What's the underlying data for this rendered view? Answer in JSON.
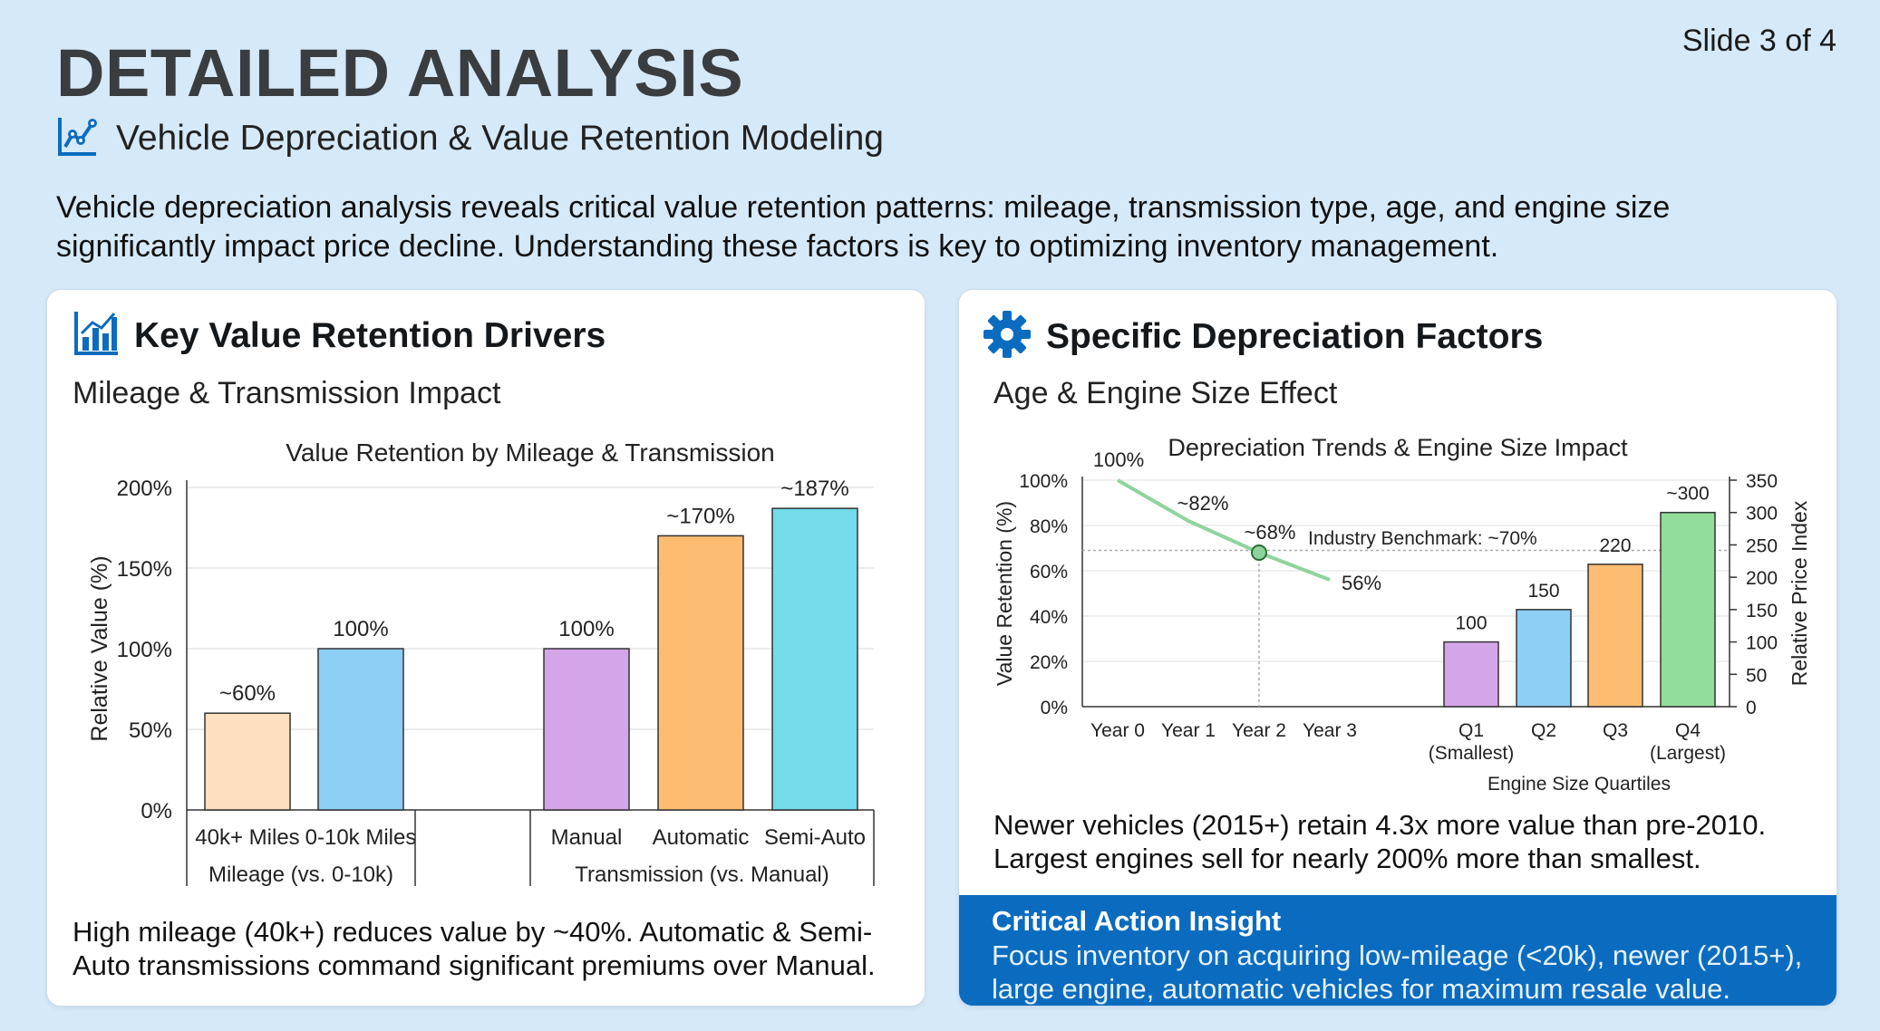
{
  "slide_number": "Slide 3 of 4",
  "title": "DETAILED ANALYSIS",
  "subtitle": "Vehicle Depreciation & Value Retention Modeling",
  "intro": "Vehicle depreciation analysis reveals critical value retention patterns: mileage, transmission type, age, and engine size significantly impact price decline. Understanding these factors is key to optimizing inventory management.",
  "colors": {
    "accent": "#0b6cbf",
    "background": "#d6e9f8",
    "line": "#8fd49c"
  },
  "left_card": {
    "heading": "Key Value Retention Drivers",
    "heading_icon": "bar-chart-icon",
    "subheading": "Mileage & Transmission Impact",
    "footer": "High mileage (40k+) reduces value by ~40%. Automatic & Semi-Auto transmissions command significant premiums over Manual."
  },
  "right_card": {
    "heading": "Specific Depreciation Factors",
    "heading_icon": "gear-icon",
    "subheading": "Age & Engine Size Effect",
    "footer": "Newer vehicles (2015+) retain 4.3x more value than pre-2010. Largest engines sell for nearly 200% more than smallest.",
    "insight_title": "Critical Action Insight",
    "insight_body": "Focus inventory on acquiring low-mileage (<20k), newer (2015+), large engine, automatic vehicles for maximum resale value."
  },
  "chart_data": [
    {
      "type": "bar",
      "title": "Value Retention by Mileage & Transmission",
      "ylabel": "Relative Value (%)",
      "ylim": [
        0,
        200
      ],
      "yticks": [
        "0%",
        "50%",
        "100%",
        "150%",
        "200%"
      ],
      "groups": [
        {
          "label": "Mileage (vs. 0-10k)",
          "categories": [
            "40k+ Miles",
            "0-10k Miles"
          ],
          "values": [
            60,
            100
          ],
          "labels": [
            "~60%",
            "100%"
          ],
          "colors": [
            "#fde0bf",
            "#8ecff5"
          ]
        },
        {
          "label": "Transmission (vs. Manual)",
          "categories": [
            "Manual",
            "Automatic",
            "Semi-Auto"
          ],
          "values": [
            100,
            170,
            187
          ],
          "labels": [
            "100%",
            "~170%",
            "~187%"
          ],
          "colors": [
            "#d4a6e9",
            "#fcbc72",
            "#74dbeb"
          ]
        }
      ],
      "grid": true
    },
    {
      "type": "line",
      "title": "Depreciation Trends & Engine Size Impact",
      "ylabel": "Value Retention (%)",
      "ylim": [
        0,
        100
      ],
      "yticks": [
        "0%",
        "20%",
        "40%",
        "60%",
        "80%",
        "100%"
      ],
      "x": [
        "Year 0",
        "Year 1",
        "Year 2",
        "Year 3"
      ],
      "values": [
        100,
        82,
        68,
        56
      ],
      "labels": [
        "100%",
        "~82%",
        "~68%",
        "56%"
      ],
      "benchmark": {
        "label": "Industry Benchmark: ~70%",
        "value": 69
      },
      "highlight_index": 2
    },
    {
      "type": "bar",
      "ylabel": "Relative Price Index",
      "xlabel": "Engine Size Quartiles",
      "ylim": [
        0,
        350
      ],
      "yticks": [
        "0",
        "50",
        "100",
        "150",
        "200",
        "250",
        "300",
        "350"
      ],
      "categories": [
        "Q1\n(Smallest)",
        "Q2",
        "Q3",
        "Q4\n(Largest)"
      ],
      "values": [
        100,
        150,
        220,
        300
      ],
      "labels": [
        "100",
        "150",
        "220",
        "~300"
      ],
      "colors": [
        "#d4a6e9",
        "#8ecff5",
        "#fcbc72",
        "#93dd9c"
      ]
    }
  ]
}
